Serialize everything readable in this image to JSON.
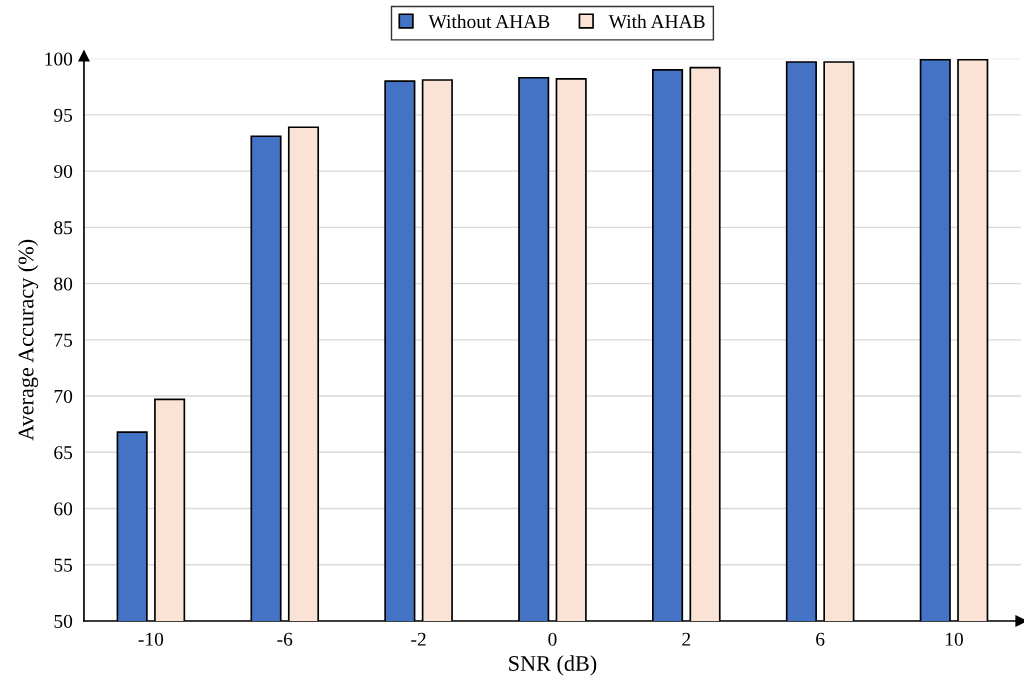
{
  "chart_data": {
    "type": "bar",
    "xlabel": "SNR (dB)",
    "ylabel": "Average Accuracy (%)",
    "categories": [
      "-10",
      "-6",
      "-2",
      "0",
      "2",
      "6",
      "10"
    ],
    "series": [
      {
        "name": "Without AHAB",
        "color": "#4472c4",
        "values": [
          66.8,
          93.1,
          98.0,
          98.3,
          99.0,
          99.7,
          99.9
        ]
      },
      {
        "name": "With AHAB",
        "color": "#fae3d5",
        "values": [
          69.7,
          93.9,
          98.1,
          98.2,
          99.2,
          99.7,
          99.9
        ]
      }
    ],
    "ylim": [
      50,
      100
    ],
    "yticks": [
      50,
      55,
      60,
      65,
      70,
      75,
      80,
      85,
      90,
      95,
      100
    ],
    "grid": "y",
    "legend": "top"
  }
}
